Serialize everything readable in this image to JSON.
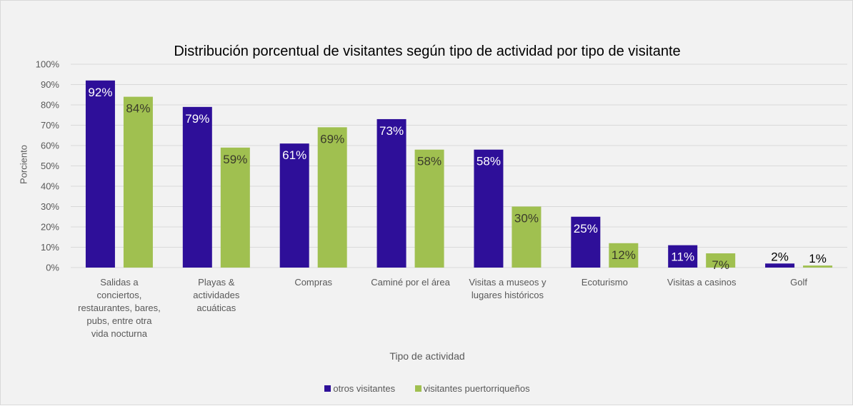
{
  "chart_data": {
    "type": "bar",
    "title": "Distribución porcentual de visitantes según tipo de actividad por tipo de visitante",
    "xlabel": "Tipo de actividad",
    "ylabel": "Porciento",
    "ylim": [
      0,
      100
    ],
    "yticks": [
      "0%",
      "10%",
      "20%",
      "30%",
      "40%",
      "50%",
      "60%",
      "70%",
      "80%",
      "90%",
      "100%"
    ],
    "grid": true,
    "legend_position": "bottom",
    "categories": [
      [
        "Salidas a",
        "conciertos,",
        "restaurantes, bares,",
        "pubs, entre otra",
        "vida nocturna"
      ],
      [
        "Playas &",
        "actividades",
        "acuáticas"
      ],
      [
        "Compras"
      ],
      [
        "Caminé por el área"
      ],
      [
        "Visitas a museos y",
        "lugares históricos"
      ],
      [
        "Ecoturismo"
      ],
      [
        "Visitas a casinos"
      ],
      [
        "Golf"
      ]
    ],
    "series": [
      {
        "name": "otros visitantes",
        "color": "#2e0f99",
        "values": [
          92,
          79,
          61,
          73,
          58,
          25,
          11,
          2
        ],
        "labels": [
          "92%",
          "79%",
          "61%",
          "73%",
          "58%",
          "25%",
          "11%",
          "2%"
        ]
      },
      {
        "name": "visitantes puertorriqueños",
        "color": "#a0c050",
        "values": [
          84,
          59,
          69,
          58,
          30,
          12,
          7,
          1
        ],
        "labels": [
          "84%",
          "59%",
          "69%",
          "58%",
          "30%",
          "12%",
          "7%",
          "1%"
        ]
      }
    ]
  }
}
